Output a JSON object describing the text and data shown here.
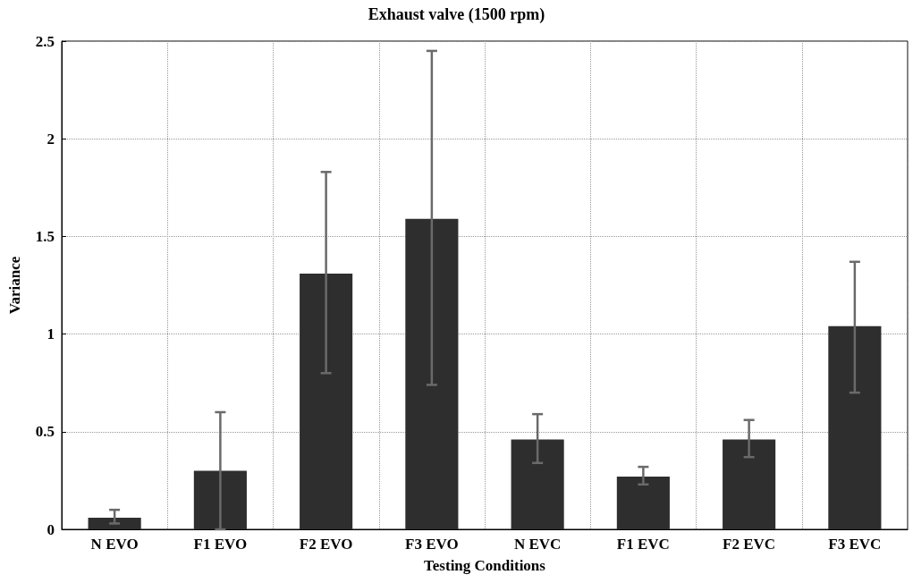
{
  "chart_data": {
    "type": "bar",
    "title": "Exhaust valve (1500 rpm)",
    "xlabel": "Testing Conditions",
    "ylabel": "Variance",
    "categories": [
      "N EVO",
      "F1 EVO",
      "F2 EVO",
      "F3 EVO",
      "N EVC",
      "F1 EVC",
      "F2 EVC",
      "F3 EVC"
    ],
    "values": [
      0.06,
      0.3,
      1.31,
      1.59,
      0.46,
      0.27,
      0.46,
      1.04
    ],
    "errors": [
      [
        0.03,
        0.1
      ],
      [
        0.0,
        0.6
      ],
      [
        0.8,
        1.83
      ],
      [
        0.74,
        2.45
      ],
      [
        0.34,
        0.59
      ],
      [
        0.23,
        0.32
      ],
      [
        0.37,
        0.56
      ],
      [
        0.7,
        1.37
      ]
    ],
    "color": "#2e2e2e",
    "ylim": [
      0,
      2.5
    ],
    "yticks": [
      0,
      0.5,
      1,
      1.5,
      2,
      2.5
    ],
    "grid": true
  }
}
